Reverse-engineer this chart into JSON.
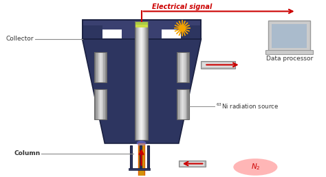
{
  "bg_color": "#eef2f8",
  "labels": {
    "electrical_signal": "Electrical signal",
    "collector": "Collector",
    "column": "Column",
    "data_processor": "Data processor",
    "n2": "N₂"
  },
  "colors": {
    "body_dark_blue": "#2d3560",
    "body_edge": "#1a2040",
    "top_section": "#3a4070",
    "gray_cyl_outer": "#999999",
    "gray_cyl_mid": "#cccccc",
    "gray_cyl_highlight": "#eeeeee",
    "green_top": "#aacc44",
    "gold_column": "#d4920a",
    "orange_column": "#e06000",
    "red_arrow": "#cc0000",
    "signal_star": "#f5a300",
    "n2_glow": "#ff8888",
    "label_color": "#333333",
    "elec_label_color": "#cc0000",
    "white": "#ffffff",
    "laptop_light_gray": "#cccccc",
    "laptop_screen": "#aabbcc",
    "tube_gray": "#aaaaaa",
    "panel_gray": "#aaaaaa",
    "panel_light": "#dddddd",
    "connector_dark": "#555566"
  }
}
